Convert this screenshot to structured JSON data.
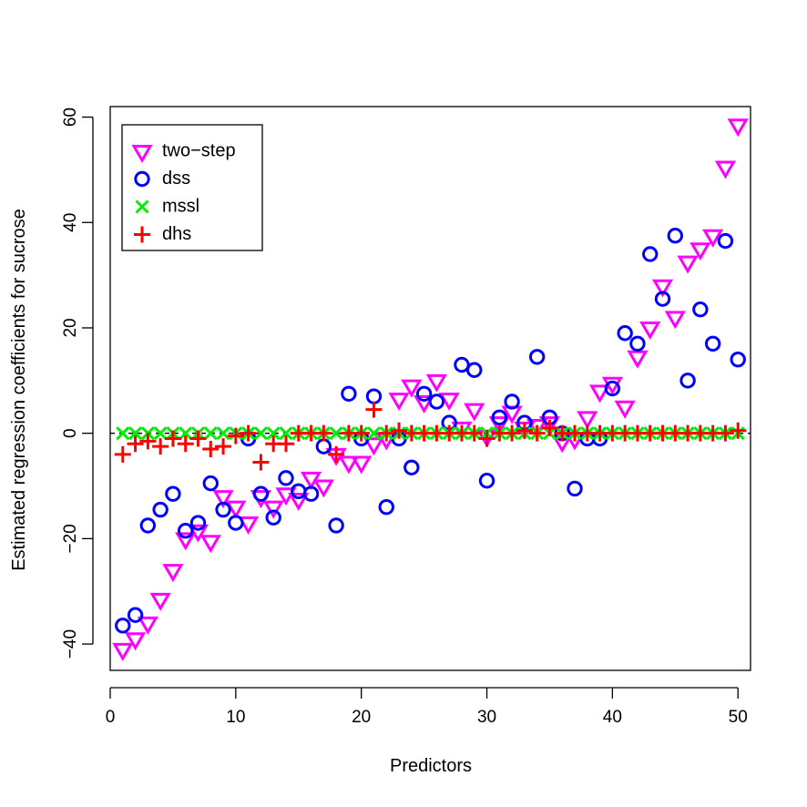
{
  "chart_data": {
    "type": "scatter",
    "title": "",
    "xlabel": "Predictors",
    "ylabel": "Estimated regression coefficients for sucrose",
    "xlim": [
      0,
      51
    ],
    "ylim": [
      -45,
      62
    ],
    "xticks": [
      0,
      10,
      20,
      30,
      40,
      50
    ],
    "yticks": [
      -40,
      -20,
      0,
      20,
      40,
      60
    ],
    "reference_line": {
      "y": 0,
      "style": "dashed"
    },
    "grid": false,
    "legend_position": "top-left",
    "series": [
      {
        "name": "two−step",
        "marker": "triangle-down",
        "color": "#ff00ff",
        "x": [
          1,
          2,
          3,
          4,
          5,
          6,
          7,
          8,
          9,
          10,
          11,
          12,
          13,
          14,
          15,
          16,
          17,
          18,
          19,
          20,
          21,
          22,
          23,
          24,
          25,
          26,
          27,
          28,
          29,
          30,
          31,
          32,
          33,
          34,
          35,
          36,
          37,
          38,
          39,
          40,
          41,
          42,
          43,
          44,
          45,
          46,
          47,
          48,
          49,
          50
        ],
        "y": [
          -41,
          -39,
          -36,
          -31.5,
          -26,
          -20,
          -18.5,
          -20.5,
          -12,
          -14,
          -17,
          -12,
          -14,
          -11.5,
          -12.5,
          -8.5,
          -10,
          -4,
          -5.5,
          -5.5,
          -2,
          -1,
          6.5,
          9,
          6,
          10,
          6.5,
          1,
          4.5,
          -0.5,
          2,
          4,
          1,
          1.5,
          2,
          -1.5,
          -1,
          3,
          8,
          9.5,
          5,
          14.5,
          20,
          28,
          22,
          32.5,
          35,
          37.5,
          50.5,
          58.5
        ]
      },
      {
        "name": "dss",
        "marker": "circle",
        "color": "#0000ff",
        "x": [
          1,
          2,
          3,
          4,
          5,
          6,
          7,
          8,
          9,
          10,
          11,
          12,
          13,
          14,
          15,
          16,
          17,
          18,
          19,
          20,
          21,
          22,
          23,
          24,
          25,
          26,
          27,
          28,
          29,
          30,
          31,
          32,
          33,
          34,
          35,
          36,
          37,
          38,
          39,
          40,
          41,
          42,
          43,
          44,
          45,
          46,
          47,
          48,
          49,
          50
        ],
        "y": [
          -36.5,
          -34.5,
          -17.5,
          -14.5,
          -11.5,
          -18.5,
          -17,
          -9.5,
          -14.5,
          -17,
          -1,
          -11.5,
          -16,
          -8.5,
          -11,
          -11.5,
          -2.5,
          -17.5,
          7.5,
          -1,
          7,
          -14,
          -1,
          -6.5,
          7.5,
          6,
          2,
          13,
          12,
          -9,
          3,
          6,
          2,
          14.5,
          3,
          0,
          -10.5,
          -1,
          -1,
          8.5,
          19,
          17,
          34,
          25.5,
          37.5,
          10,
          23.5,
          17,
          36.5,
          14
        ]
      },
      {
        "name": "mssl",
        "marker": "x",
        "color": "#00ee00",
        "x": [
          1,
          2,
          3,
          4,
          5,
          6,
          7,
          8,
          9,
          10,
          11,
          12,
          13,
          14,
          15,
          16,
          17,
          18,
          19,
          20,
          21,
          22,
          23,
          24,
          25,
          26,
          27,
          28,
          29,
          30,
          31,
          32,
          33,
          34,
          35,
          36,
          37,
          38,
          39,
          40,
          41,
          42,
          43,
          44,
          45,
          46,
          47,
          48,
          49,
          50
        ],
        "y": [
          0,
          0,
          0,
          0,
          0,
          0,
          0,
          0,
          0,
          0,
          0,
          0,
          0,
          0,
          0,
          0,
          0,
          0,
          0,
          0,
          0,
          0,
          0,
          0,
          0,
          0,
          0,
          0,
          0,
          0,
          0,
          0,
          0,
          0,
          0,
          0,
          0,
          0,
          0,
          0,
          0,
          0,
          0,
          0,
          0,
          0,
          0,
          0,
          0,
          0
        ]
      },
      {
        "name": "dhs",
        "marker": "plus",
        "color": "#ff0000",
        "x": [
          1,
          2,
          3,
          4,
          5,
          6,
          7,
          8,
          9,
          10,
          11,
          12,
          13,
          14,
          15,
          16,
          17,
          18,
          19,
          20,
          21,
          22,
          23,
          24,
          25,
          26,
          27,
          28,
          29,
          30,
          31,
          32,
          33,
          34,
          35,
          36,
          37,
          38,
          39,
          40,
          41,
          42,
          43,
          44,
          45,
          46,
          47,
          48,
          49,
          50
        ],
        "y": [
          -4,
          -2,
          -1.5,
          -2.5,
          -1,
          -2,
          -1,
          -3,
          -2.5,
          -0.5,
          0,
          -5.5,
          -2,
          -2,
          0,
          0,
          0,
          -4,
          0,
          0,
          4.5,
          0,
          0.5,
          0,
          0,
          0,
          0,
          0,
          0,
          -1,
          0,
          0,
          0.5,
          0,
          1,
          0,
          0,
          0,
          0,
          0,
          0,
          0,
          0,
          0,
          0,
          0,
          0,
          0,
          0,
          0.5
        ]
      }
    ]
  }
}
